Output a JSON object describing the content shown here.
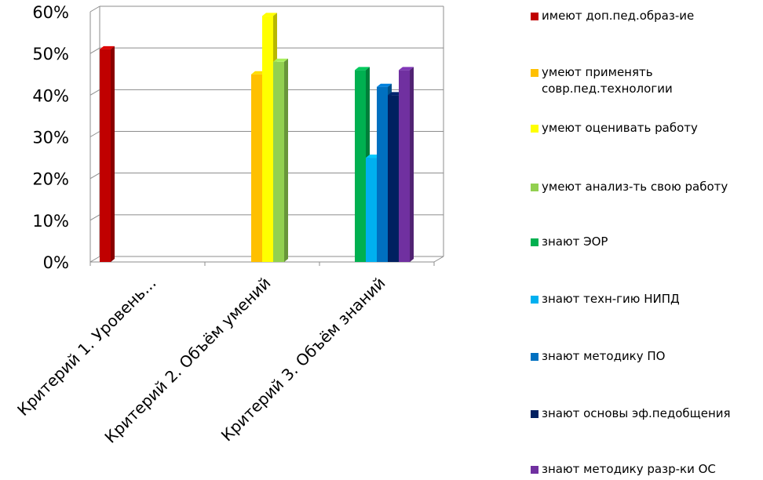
{
  "chart_data": {
    "type": "bar",
    "categories": [
      "Критерий 1. Уровень...",
      "Критерий 2. Объём умений",
      "Критерий 3. Объём знаний"
    ],
    "yticks": [
      "0%",
      "10%",
      "20%",
      "30%",
      "40%",
      "50%",
      "60%"
    ],
    "ylim": [
      0,
      60
    ],
    "grid": true,
    "legend_position": "right",
    "series": [
      {
        "name": "имеют доп.пед.образ-ие",
        "color": "#c00000",
        "values": [
          51,
          null,
          null
        ]
      },
      {
        "name": "умеют применять совр.пед.технологии",
        "color": "#ffc000",
        "values": [
          null,
          45,
          null
        ]
      },
      {
        "name": "умеют оценивать работу",
        "color": "#ffff00",
        "values": [
          null,
          59,
          null
        ]
      },
      {
        "name": "умеют анализ-ть свою работу",
        "color": "#92d050",
        "values": [
          null,
          48,
          null
        ]
      },
      {
        "name": "знают ЭОР",
        "color": "#00b050",
        "values": [
          null,
          null,
          46
        ]
      },
      {
        "name": "знают техн-гию НИПД",
        "color": "#00b0f0",
        "values": [
          null,
          null,
          25
        ]
      },
      {
        "name": "знают методику ПО",
        "color": "#0070c0",
        "values": [
          null,
          null,
          42
        ]
      },
      {
        "name": "знают основы эф.педобщения",
        "color": "#002060",
        "values": [
          null,
          null,
          40
        ]
      },
      {
        "name": "знают методику разр-ки ОС",
        "color": "#7030a0",
        "values": [
          null,
          null,
          46
        ]
      }
    ]
  }
}
